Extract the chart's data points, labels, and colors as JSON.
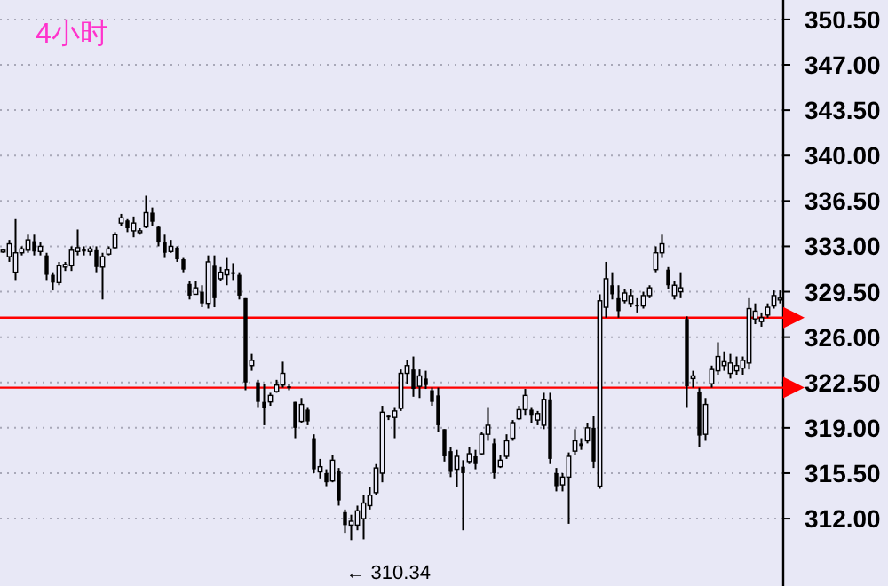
{
  "chart_data": {
    "type": "candlestick",
    "title": "4小时",
    "categories": [
      null,
      null,
      null,
      null,
      null,
      null,
      null,
      null,
      null,
      null,
      null,
      null,
      null,
      null,
      null,
      null,
      null,
      null,
      null,
      null,
      null,
      null,
      null,
      null,
      null,
      null,
      null,
      null,
      null,
      null,
      null,
      null,
      null,
      null,
      null,
      null,
      null,
      null,
      null,
      null,
      null,
      null,
      null,
      null,
      null,
      null,
      null,
      null,
      null,
      null,
      null,
      null,
      null,
      null,
      null,
      null,
      null,
      null,
      null,
      null,
      null,
      null,
      null,
      null,
      null,
      null,
      null,
      null,
      null,
      null,
      null,
      null,
      null,
      null,
      null,
      null,
      null,
      null,
      null,
      null,
      null,
      null,
      null,
      null,
      null,
      null,
      null,
      null,
      null,
      null,
      null,
      null,
      null,
      null,
      null,
      null,
      null,
      null,
      null,
      null,
      null,
      null,
      null,
      null,
      null,
      null,
      null,
      null,
      null,
      null,
      null,
      null,
      null,
      null,
      null,
      null,
      null,
      null,
      null,
      null,
      null,
      null,
      null,
      null,
      null,
      null
    ],
    "ohlc": [
      [
        332.6,
        332.8,
        332.5,
        332.7
      ],
      [
        332.2,
        333.5,
        331.8,
        333.2
      ],
      [
        331.0,
        335.1,
        330.4,
        332.5
      ],
      [
        332.5,
        333.0,
        332.3,
        332.8
      ],
      [
        332.7,
        333.9,
        332.5,
        333.5
      ],
      [
        333.4,
        333.9,
        332.3,
        332.6
      ],
      [
        332.6,
        333.3,
        332.3,
        333.0
      ],
      [
        332.3,
        332.5,
        330.4,
        330.8
      ],
      [
        330.8,
        331.0,
        329.6,
        330.2
      ],
      [
        330.2,
        331.8,
        330.0,
        331.5
      ],
      [
        331.4,
        331.8,
        331.1,
        331.6
      ],
      [
        331.5,
        333.0,
        331.1,
        332.7
      ],
      [
        332.6,
        334.3,
        332.3,
        332.9
      ],
      [
        332.8,
        333.0,
        332.3,
        332.6
      ],
      [
        332.6,
        333.0,
        332.3,
        332.8
      ],
      [
        332.7,
        333.0,
        331.0,
        331.4
      ],
      [
        331.4,
        332.5,
        328.9,
        332.2
      ],
      [
        332.4,
        333.0,
        332.3,
        332.8
      ],
      [
        332.9,
        334.1,
        332.8,
        333.9
      ],
      [
        334.8,
        335.5,
        334.6,
        335.2
      ],
      [
        335.0,
        335.1,
        334.1,
        334.4
      ],
      [
        334.2,
        335.3,
        333.7,
        334.8
      ],
      [
        334.1,
        334.4,
        333.9,
        334.2
      ],
      [
        334.5,
        336.9,
        334.4,
        335.6
      ],
      [
        335.6,
        336.0,
        334.6,
        334.9
      ],
      [
        334.5,
        334.6,
        333.0,
        333.3
      ],
      [
        333.3,
        333.9,
        332.1,
        332.5
      ],
      [
        332.6,
        333.5,
        332.5,
        333.0
      ],
      [
        332.9,
        333.0,
        331.8,
        332.0
      ],
      [
        332.0,
        332.1,
        331.0,
        331.2
      ],
      [
        330.1,
        330.3,
        328.9,
        329.2
      ],
      [
        329.3,
        330.3,
        329.3,
        329.8
      ],
      [
        329.5,
        330.0,
        328.3,
        328.6
      ],
      [
        328.6,
        332.3,
        328.2,
        331.8
      ],
      [
        331.5,
        332.3,
        328.3,
        329.0
      ],
      [
        330.5,
        331.4,
        330.3,
        331.0
      ],
      [
        330.8,
        332.1,
        330.0,
        331.2
      ],
      [
        331.0,
        331.7,
        330.4,
        330.9
      ],
      [
        330.8,
        331.0,
        328.9,
        329.2
      ],
      [
        329.0,
        329.0,
        321.9,
        322.5
      ],
      [
        323.8,
        324.7,
        323.4,
        324.2
      ],
      [
        322.5,
        322.7,
        320.6,
        321.0
      ],
      [
        321.0,
        322.4,
        319.2,
        320.5
      ],
      [
        321.0,
        321.7,
        320.7,
        321.5
      ],
      [
        321.8,
        322.7,
        321.7,
        322.3
      ],
      [
        322.3,
        324.1,
        322.1,
        323.2
      ],
      [
        322.2,
        322.4,
        321.9,
        322.1
      ],
      [
        321.0,
        321.0,
        318.2,
        319.0
      ],
      [
        319.5,
        321.3,
        319.4,
        320.8
      ],
      [
        320.4,
        320.6,
        319.2,
        319.5
      ],
      [
        318.2,
        318.5,
        315.5,
        315.8
      ],
      [
        315.6,
        316.6,
        315.1,
        316.0
      ],
      [
        315.5,
        315.8,
        314.5,
        314.8
      ],
      [
        314.9,
        316.9,
        314.8,
        316.5
      ],
      [
        315.7,
        315.9,
        313.0,
        313.4
      ],
      [
        312.5,
        312.7,
        310.9,
        311.5
      ],
      [
        311.5,
        312.3,
        310.34,
        311.8
      ],
      [
        311.5,
        313.0,
        311.1,
        312.6
      ],
      [
        312.0,
        313.8,
        310.4,
        313.2
      ],
      [
        313.0,
        314.4,
        312.7,
        313.8
      ],
      [
        314.0,
        316.2,
        313.8,
        315.9
      ],
      [
        315.5,
        320.7,
        314.8,
        320.2
      ],
      [
        320.0,
        320.0,
        319.6,
        319.8
      ],
      [
        319.8,
        320.6,
        318.2,
        320.3
      ],
      [
        320.5,
        323.5,
        320.3,
        323.2
      ],
      [
        323.2,
        324.2,
        322.4,
        323.8
      ],
      [
        323.5,
        324.5,
        321.4,
        322.0
      ],
      [
        322.2,
        323.5,
        321.3,
        323.0
      ],
      [
        322.8,
        323.4,
        322.0,
        322.3
      ],
      [
        321.9,
        322.1,
        320.7,
        321.0
      ],
      [
        321.5,
        322.1,
        318.7,
        319.2
      ],
      [
        318.9,
        318.9,
        316.4,
        316.8
      ],
      [
        317.2,
        317.5,
        315.2,
        315.6
      ],
      [
        315.8,
        317.3,
        314.4,
        316.8
      ],
      [
        316.0,
        316.5,
        311.1,
        315.5
      ],
      [
        316.4,
        317.5,
        316.2,
        317.0
      ],
      [
        316.8,
        317.3,
        315.8,
        316.2
      ],
      [
        317.0,
        318.7,
        316.9,
        318.5
      ],
      [
        318.5,
        320.6,
        318.0,
        319.2
      ],
      [
        317.8,
        318.2,
        315.1,
        315.5
      ],
      [
        316.0,
        316.9,
        315.9,
        316.5
      ],
      [
        316.8,
        318.5,
        316.6,
        318.0
      ],
      [
        318.2,
        319.6,
        318.0,
        319.4
      ],
      [
        319.7,
        320.7,
        319.6,
        320.4
      ],
      [
        320.4,
        322.0,
        320.0,
        321.5
      ],
      [
        320.4,
        320.6,
        319.4,
        320.0
      ],
      [
        319.6,
        320.3,
        319.2,
        320.1
      ],
      [
        319.2,
        321.7,
        318.9,
        321.2
      ],
      [
        321.2,
        321.7,
        316.2,
        316.6
      ],
      [
        315.5,
        315.9,
        314.1,
        314.5
      ],
      [
        314.6,
        315.5,
        314.1,
        315.2
      ],
      [
        315.2,
        317.1,
        311.6,
        316.8
      ],
      [
        317.2,
        318.9,
        316.9,
        318.0
      ],
      [
        317.8,
        318.2,
        317.3,
        317.6
      ],
      [
        318.0,
        319.4,
        317.8,
        319.0
      ],
      [
        319.0,
        319.9,
        315.9,
        316.4
      ],
      [
        314.5,
        329.3,
        314.3,
        328.8
      ],
      [
        328.3,
        331.8,
        327.5,
        330.5
      ],
      [
        330.0,
        331.0,
        328.9,
        329.3
      ],
      [
        329.0,
        330.0,
        327.5,
        328.0
      ],
      [
        328.8,
        329.7,
        328.6,
        329.4
      ],
      [
        328.6,
        329.7,
        328.3,
        329.2
      ],
      [
        328.5,
        329.0,
        327.9,
        328.4
      ],
      [
        328.4,
        329.5,
        328.2,
        329.2
      ],
      [
        329.2,
        330.0,
        329.0,
        329.8
      ],
      [
        331.2,
        333.0,
        331.0,
        332.5
      ],
      [
        332.5,
        333.9,
        332.1,
        333.2
      ],
      [
        331.2,
        331.4,
        329.7,
        330.0
      ],
      [
        329.2,
        330.3,
        328.9,
        330.0
      ],
      [
        329.5,
        331.0,
        329.0,
        329.8
      ],
      [
        327.4,
        327.6,
        320.6,
        322.2
      ],
      [
        322.8,
        323.4,
        322.1,
        323.0
      ],
      [
        321.8,
        322.1,
        317.5,
        318.4
      ],
      [
        318.5,
        321.3,
        318.0,
        320.8
      ],
      [
        322.4,
        323.8,
        322.1,
        323.5
      ],
      [
        323.4,
        325.6,
        323.1,
        324.5
      ],
      [
        323.8,
        324.9,
        323.4,
        324.1
      ],
      [
        323.2,
        324.7,
        322.8,
        324.0
      ],
      [
        323.4,
        324.5,
        323.1,
        323.8
      ],
      [
        323.6,
        324.5,
        323.1,
        324.2
      ],
      [
        324.0,
        329.0,
        323.5,
        328.2
      ],
      [
        327.4,
        328.6,
        327.0,
        328.0
      ],
      [
        327.2,
        327.9,
        326.8,
        327.5
      ],
      [
        327.7,
        328.6,
        327.5,
        328.3
      ],
      [
        328.4,
        329.6,
        328.2,
        329.2
      ],
      [
        328.9,
        329.6,
        328.6,
        329.0
      ]
    ],
    "color": "#000000",
    "ylim": [
      306.8,
      352.0
    ],
    "yticks": [
      {
        "value": 312,
        "label": "312.00"
      },
      {
        "value": 315.5,
        "label": "315.50"
      },
      {
        "value": 319,
        "label": "319.00"
      },
      {
        "value": 322.5,
        "label": "322.50"
      },
      {
        "value": 326,
        "label": "326.00"
      },
      {
        "value": 329.5,
        "label": "329.50"
      },
      {
        "value": 333,
        "label": "333.00"
      },
      {
        "value": 336.5,
        "label": "336.50"
      },
      {
        "value": 340,
        "label": "340.00"
      },
      {
        "value": 343.5,
        "label": "343.50"
      },
      {
        "value": 347,
        "label": "347.00"
      },
      {
        "value": 350.5,
        "label": "350.50"
      }
    ],
    "grid": "y",
    "tick_labels": "y",
    "ref_lines": [
      {
        "axis": "y",
        "value": 327.5,
        "color": "#ff0000"
      },
      {
        "axis": "y",
        "value": 322.1,
        "color": "#ff0000"
      }
    ],
    "annotations": [
      "← 310.34"
    ]
  }
}
